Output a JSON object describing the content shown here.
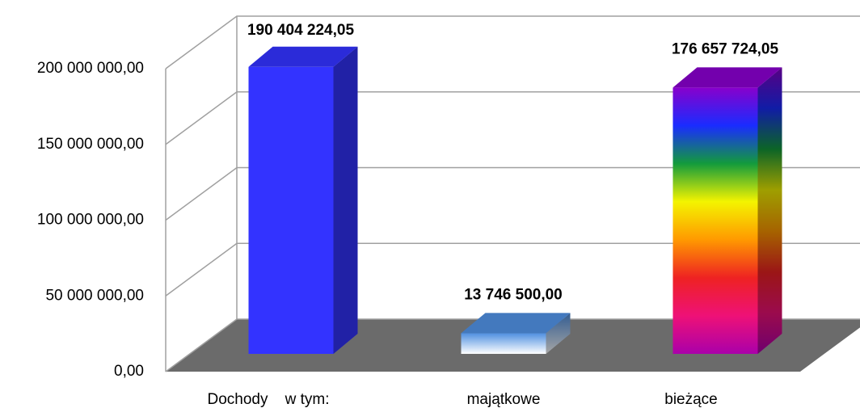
{
  "chart_data": {
    "type": "bar3d",
    "categories": [
      "Dochody    w tym:",
      "majątkowe",
      "bieżące"
    ],
    "values": [
      190404224.05,
      13746500,
      176657724.05
    ],
    "value_labels": [
      "190 404 224,05",
      "13 746 500,00",
      "176 657 724,05"
    ],
    "colors": [
      [
        "#3333ff",
        "#3333ff"
      ],
      [
        "#4f8fe0",
        "#ffffff"
      ],
      [
        "#8800cc",
        "#1a2cff",
        "#139b3c",
        "#f4f400",
        "#ff9900",
        "#ee2222",
        "#ee1177",
        "#aa00aa"
      ]
    ],
    "ylim": [
      0,
      200000000
    ],
    "yticks": [
      {
        "value": 0,
        "label": "0,00"
      },
      {
        "value": 50000000,
        "label": "50 000 000,00"
      },
      {
        "value": 100000000,
        "label": "100 000 000,00"
      },
      {
        "value": 150000000,
        "label": "150 000 000,00"
      },
      {
        "value": 200000000,
        "label": "200 000 000,00"
      }
    ],
    "grid": true
  }
}
